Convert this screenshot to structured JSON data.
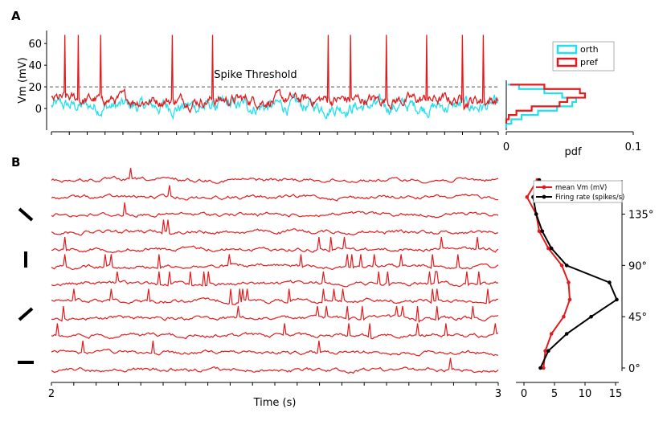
{
  "colors": {
    "red": "#e41a1c",
    "cyan": "#22e0ee",
    "black": "#000000",
    "dash": "#555555"
  },
  "chart_data": [
    {
      "id": "A-vm",
      "panel": "A",
      "type": "line",
      "ylabel": "Vm (mV)",
      "yticks": [
        "0",
        "20",
        "40",
        "60"
      ],
      "ylim": [
        -20,
        72
      ],
      "threshold": {
        "value": 20,
        "label": "Spike Threshold"
      },
      "series": [
        {
          "name": "orth",
          "color": "cyan",
          "baseline": 2,
          "noise": 6,
          "spikes": []
        },
        {
          "name": "pref",
          "color": "red",
          "baseline": 8,
          "noise": 5,
          "spike_times": [
            0.03,
            0.06,
            0.11,
            0.27,
            0.36,
            0.62,
            0.67,
            0.75,
            0.84,
            0.92,
            0.967
          ],
          "spike_peak": 68
        }
      ]
    },
    {
      "id": "A-pdf",
      "panel": "A",
      "type": "line",
      "xlabel": "pdf",
      "xticks": [
        "0",
        "0.1"
      ],
      "xlim": [
        0,
        0.1
      ],
      "series": [
        {
          "name": "orth",
          "color": "cyan",
          "y": [
            -18,
            -14,
            -10,
            -6,
            -2,
            2,
            6,
            10,
            14,
            18,
            22
          ],
          "x": [
            0.0,
            0.004,
            0.012,
            0.025,
            0.04,
            0.052,
            0.055,
            0.044,
            0.03,
            0.01,
            0.001
          ]
        },
        {
          "name": "pref",
          "color": "red",
          "y": [
            -14,
            -10,
            -6,
            -2,
            2,
            6,
            10,
            14,
            18,
            22
          ],
          "x": [
            0.0,
            0.002,
            0.008,
            0.02,
            0.042,
            0.048,
            0.062,
            0.058,
            0.03,
            0.003
          ]
        }
      ],
      "legend": {
        "entries": [
          "orth",
          "pref"
        ],
        "placement": "top-right"
      }
    },
    {
      "id": "B-traces",
      "panel": "B",
      "type": "line",
      "xlabel": "Time (s)",
      "xticks": [
        "2",
        "3"
      ],
      "xlim": [
        2,
        3
      ],
      "n_traces": 12,
      "orientation_markers": [
        "135°",
        "90°",
        "45°",
        "0°"
      ],
      "series_color": "red"
    },
    {
      "id": "B-tuning",
      "panel": "B",
      "type": "line",
      "xticks": [
        "0",
        "5",
        "10",
        "15"
      ],
      "xlim": [
        0,
        15
      ],
      "yticks": [
        "0°",
        "45°",
        "90°",
        "135°"
      ],
      "ylim": [
        -5,
        170
      ],
      "series": [
        {
          "name": "mean Vm (mV)",
          "color": "red",
          "y": [
            0,
            15,
            30,
            45,
            60,
            75,
            90,
            105,
            120,
            135,
            150,
            165
          ],
          "x": [
            3.2,
            3.5,
            4.5,
            6.5,
            7.5,
            7.3,
            6.2,
            4.0,
            2.5,
            2.0,
            0.5,
            2.2
          ]
        },
        {
          "name": "Firing rate (spikes/s)",
          "color": "black",
          "y": [
            0,
            15,
            30,
            45,
            60,
            75,
            90,
            105,
            120,
            135,
            150,
            165
          ],
          "x": [
            2.7,
            4.0,
            7.0,
            11.0,
            15.2,
            14.0,
            7.0,
            4.5,
            3.0,
            2.0,
            1.5,
            2.5
          ]
        }
      ],
      "legend": {
        "entries": [
          "mean Vm (mV)",
          "Firing rate (spikes/s)"
        ],
        "placement": "top"
      }
    }
  ],
  "labels": {
    "panel_a": "A",
    "panel_b": "B"
  }
}
